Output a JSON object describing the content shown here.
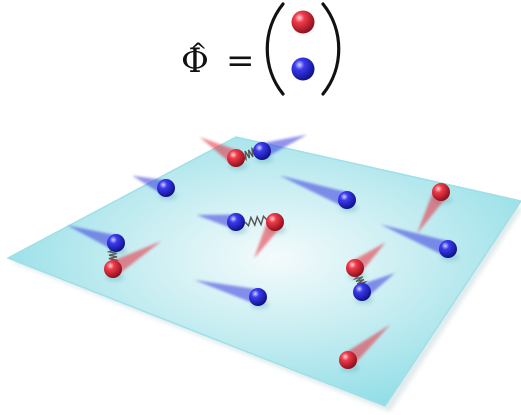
{
  "equation": {
    "operator": "Φ",
    "hat": "^",
    "equals": "="
  },
  "particles": {
    "red_color": "#e8293a",
    "blue_color": "#3a3ae0",
    "spring_color": "#555555"
  },
  "plane": {
    "color_center": "#f2fbfc",
    "color_edge": "#8fdde6"
  }
}
